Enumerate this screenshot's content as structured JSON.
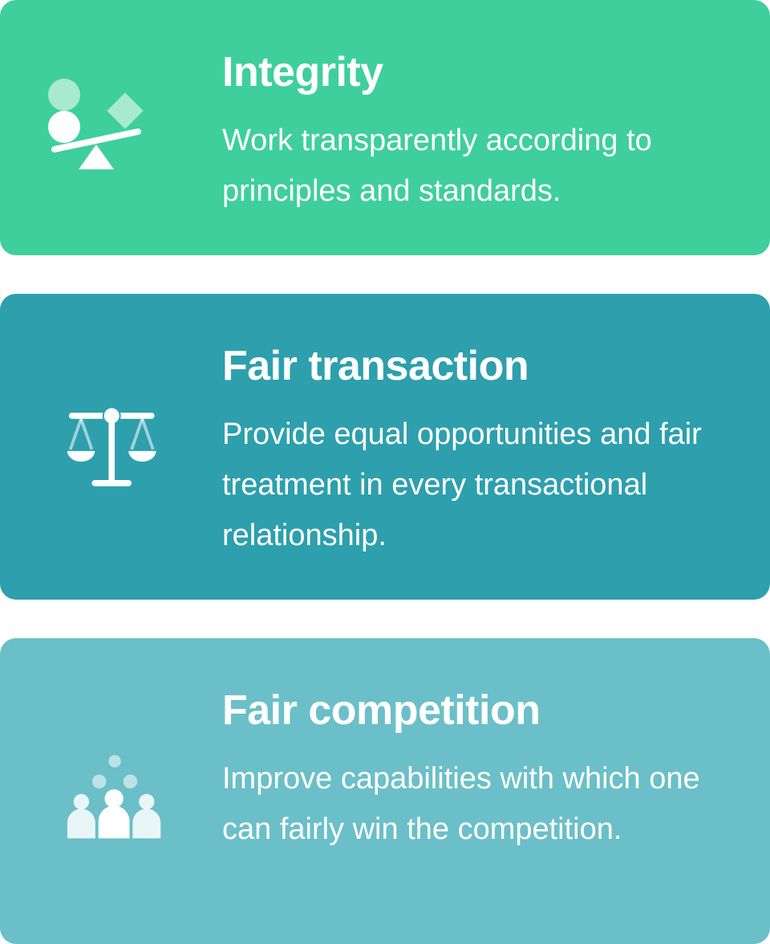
{
  "cards": [
    {
      "icon": "seesaw-balance-icon",
      "color": "#3ecf9c",
      "title": "Integrity",
      "description": "Work transparently according to principles and standards."
    },
    {
      "icon": "scales-of-justice-icon",
      "color": "#2d9fad",
      "title": "Fair transaction",
      "description": "Provide equal opportunities and fair treatment in every transactional relationship."
    },
    {
      "icon": "people-group-icon",
      "color": "#6bbfc8",
      "title": "Fair competition",
      "description": "Improve capabilities with which one can fairly win the competition."
    }
  ]
}
